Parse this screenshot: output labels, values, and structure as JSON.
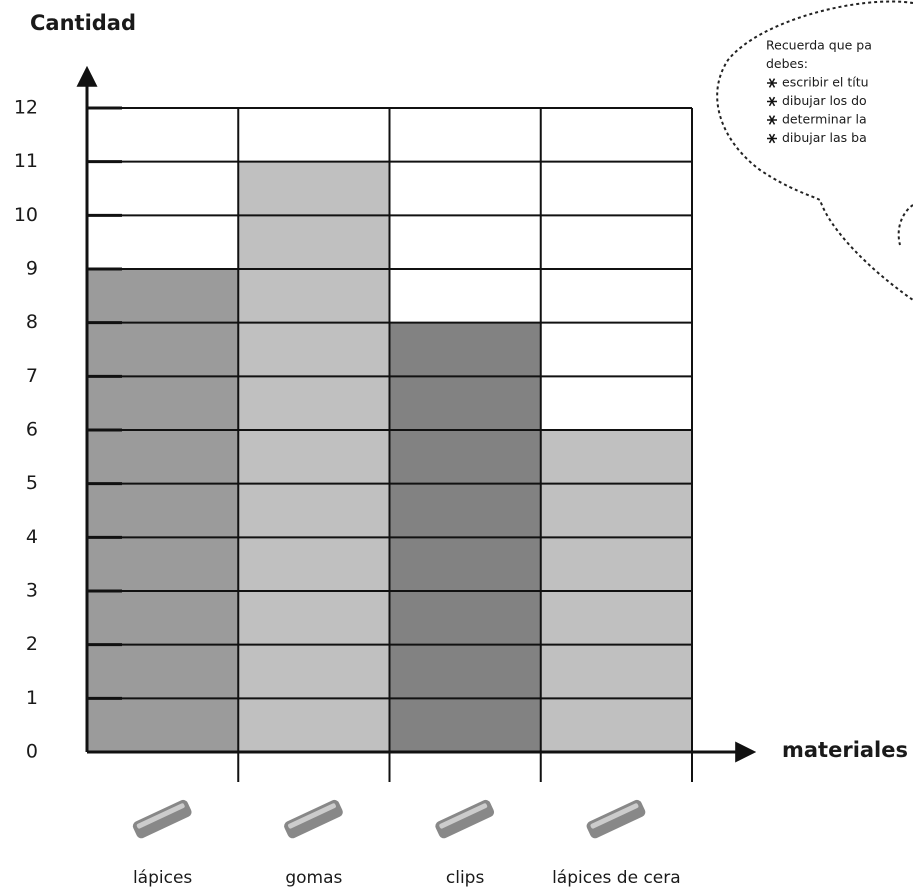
{
  "chart_data": {
    "type": "bar",
    "y_label": "Cantidad",
    "x_label": "materiales",
    "categories": [
      "lápices",
      "gomas",
      "clips",
      "lápices de cera"
    ],
    "values": [
      9,
      11,
      8,
      6
    ],
    "colors": [
      "#9b9b9b",
      "#c0c0c0",
      "#828282",
      "#c0c0c0"
    ],
    "ylim": [
      0,
      12
    ],
    "yticks": [
      0,
      1,
      2,
      3,
      4,
      5,
      6,
      7,
      8,
      9,
      10,
      11,
      12
    ],
    "grid": true,
    "note": [
      "Recuerda que pa",
      "debes:",
      "escribir el títu",
      "dibujar los do",
      "determinar la",
      "dibujar las ba"
    ]
  }
}
